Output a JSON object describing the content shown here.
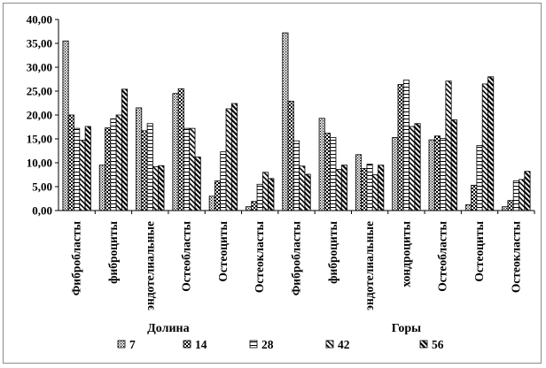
{
  "chart_data": {
    "type": "bar",
    "title": "",
    "xlabel": "",
    "ylabel": "",
    "ylim": [
      0,
      40
    ],
    "yticks": [
      "0,00",
      "5,00",
      "10,00",
      "15,00",
      "20,00",
      "25,00",
      "30,00",
      "35,00",
      "40,00"
    ],
    "grid": false,
    "legend_position": "bottom",
    "categories": [
      "Фибробласты",
      "фиброциты",
      "эндотелиальные",
      "Остеобласты",
      "Остеоциты",
      "Остеокласты",
      "Фибробласты",
      "фиброциты",
      "эндотелиальные",
      "хондроциты",
      "Остеобласты",
      "Остеоциты",
      "Остеокласты"
    ],
    "groups": [
      {
        "label": "Долина",
        "start": 0,
        "end": 5
      },
      {
        "label": "Горы",
        "start": 6,
        "end": 12
      }
    ],
    "series": [
      {
        "name": "7",
        "pattern": "dots",
        "values": [
          35.5,
          9.5,
          21.5,
          24.5,
          3.0,
          0.8,
          37.2,
          19.3,
          11.7,
          15.3,
          14.8,
          1.2,
          0.8
        ]
      },
      {
        "name": "14",
        "pattern": "check",
        "values": [
          20.0,
          17.3,
          16.7,
          25.5,
          6.2,
          1.9,
          22.9,
          16.2,
          8.8,
          26.4,
          15.6,
          5.3,
          2.1
        ]
      },
      {
        "name": "28",
        "pattern": "hline",
        "values": [
          17.2,
          19.2,
          18.2,
          17.2,
          12.3,
          5.5,
          14.6,
          15.3,
          9.7,
          27.3,
          15.1,
          13.6,
          6.2
        ]
      },
      {
        "name": "42",
        "pattern": "diag",
        "values": [
          14.7,
          20.0,
          9.2,
          17.2,
          21.3,
          8.0,
          9.3,
          8.6,
          7.5,
          17.6,
          27.1,
          26.5,
          6.5
        ]
      },
      {
        "name": "56",
        "pattern": "diag2",
        "values": [
          17.6,
          25.4,
          9.4,
          11.2,
          22.4,
          6.7,
          7.6,
          9.5,
          9.5,
          18.2,
          19.0,
          28.0,
          8.2
        ]
      }
    ]
  },
  "colors": {
    "frame": "#8a8a8a",
    "axis": "#000000",
    "bar_fill": "#ffffff",
    "pattern_ink": "#000000"
  }
}
